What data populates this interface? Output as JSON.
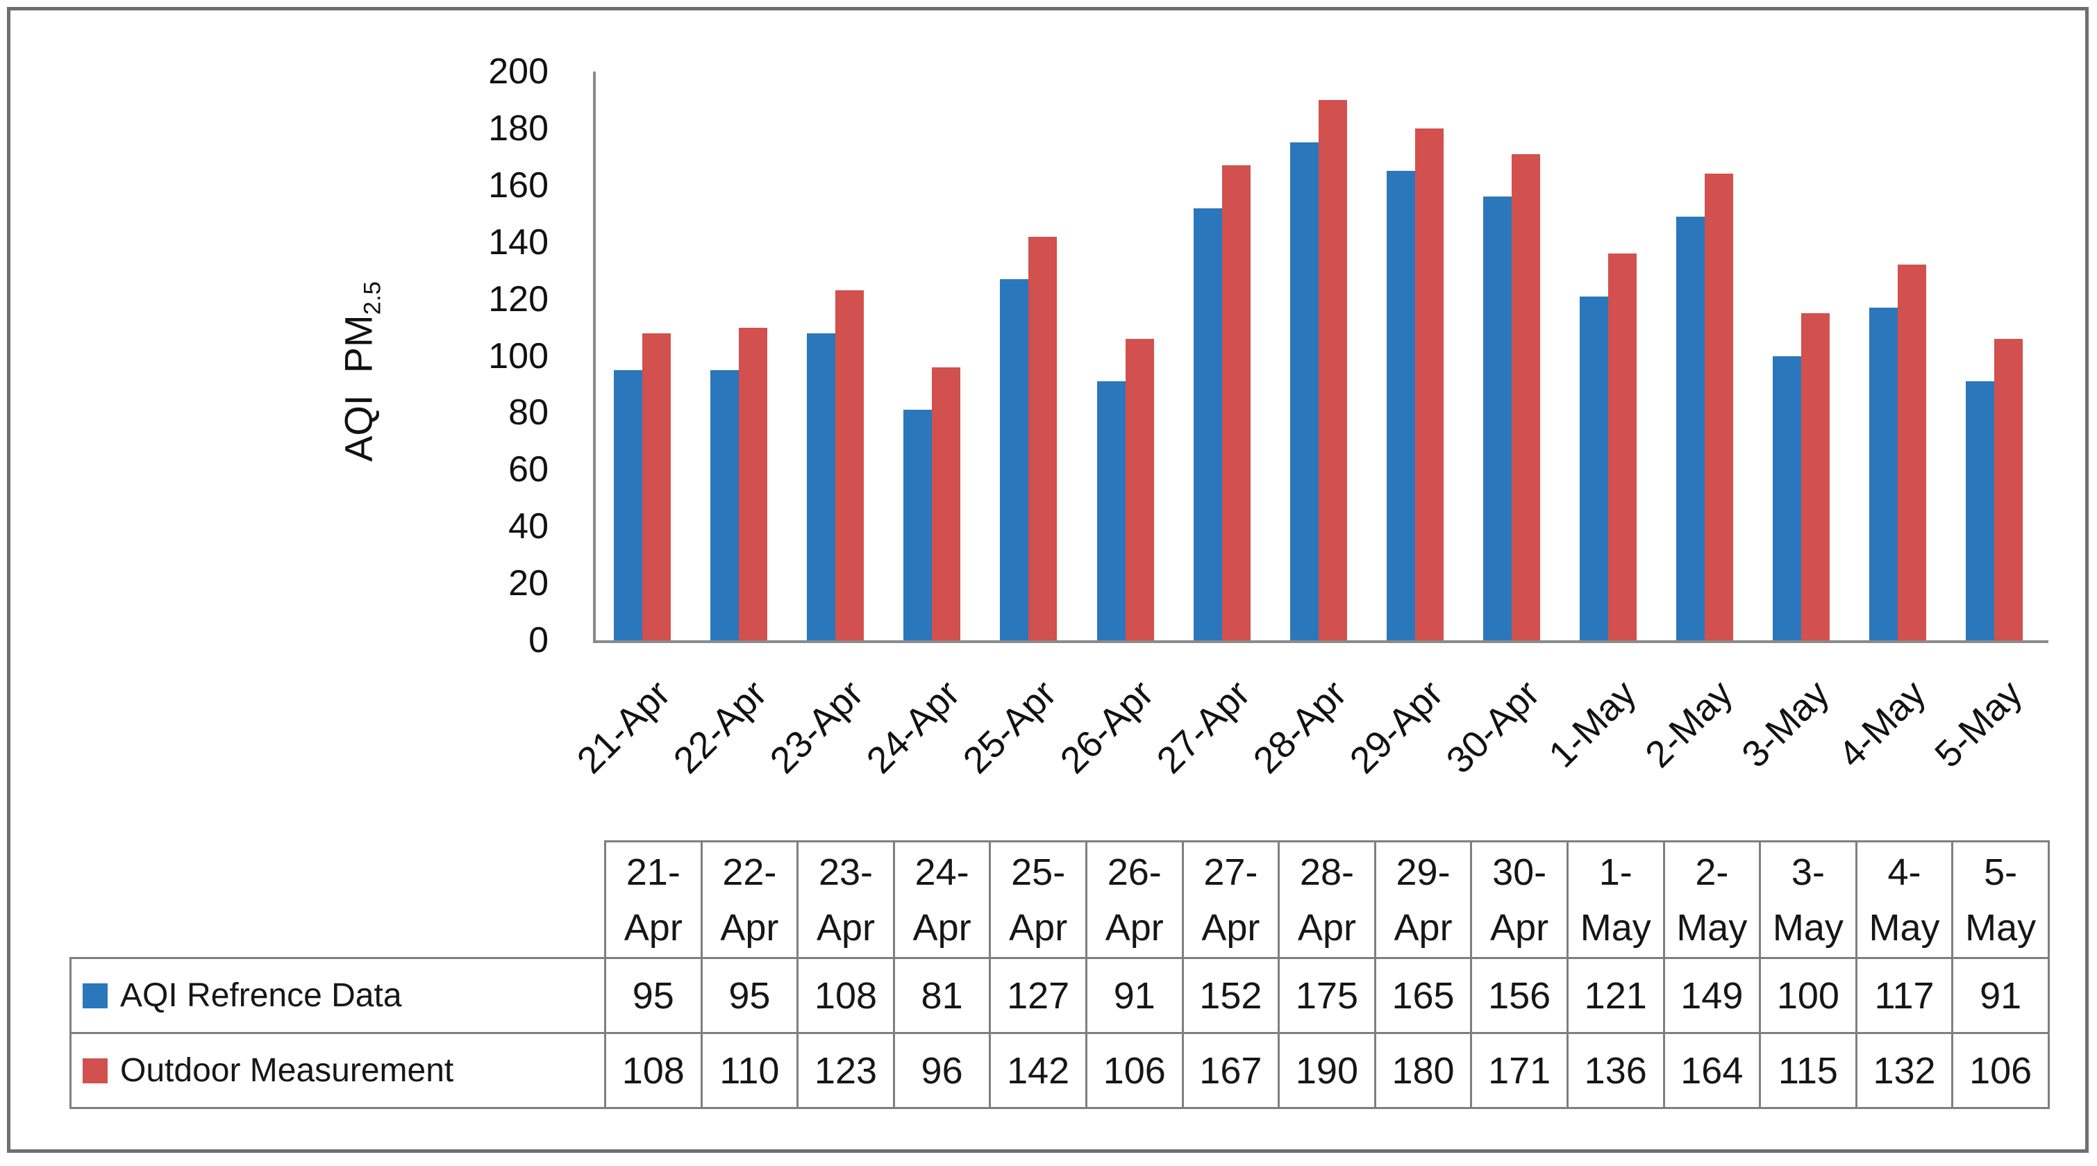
{
  "chart_data": {
    "type": "bar",
    "title": "",
    "categories": [
      "21-Apr",
      "22-Apr",
      "23-Apr",
      "24-Apr",
      "25-Apr",
      "26-Apr",
      "27-Apr",
      "28-Apr",
      "29-Apr",
      "30-Apr",
      "1-May",
      "2-May",
      "3-May",
      "4-May",
      "5-May"
    ],
    "series": [
      {
        "name": "AQI Refrence Data",
        "color": "#2b77bb",
        "values": [
          95,
          95,
          108,
          81,
          127,
          91,
          152,
          175,
          165,
          156,
          121,
          149,
          100,
          117,
          91
        ]
      },
      {
        "name": "Outdoor Measurement",
        "color": "#d2504d",
        "values": [
          108,
          110,
          123,
          96,
          142,
          106,
          167,
          190,
          180,
          171,
          136,
          164,
          115,
          132,
          106
        ]
      }
    ],
    "xlabel": "",
    "ylabel": "AQI  PM",
    "ylabel_subscript": "2.5",
    "ylim": [
      0,
      200
    ],
    "yticks": [
      0,
      20,
      40,
      60,
      80,
      100,
      120,
      140,
      160,
      180,
      200
    ],
    "grid": false,
    "x_tick_rotation_deg": 45,
    "legend_position": "data-table-left-column"
  },
  "colors": {
    "series_blue": "#2b77bb",
    "series_red": "#d2504d",
    "axis_line": "#8a8a8a",
    "table_border": "#7f7f7f",
    "frame_border": "#6e6e6e",
    "text": "#111111",
    "background": "#ffffff"
  }
}
